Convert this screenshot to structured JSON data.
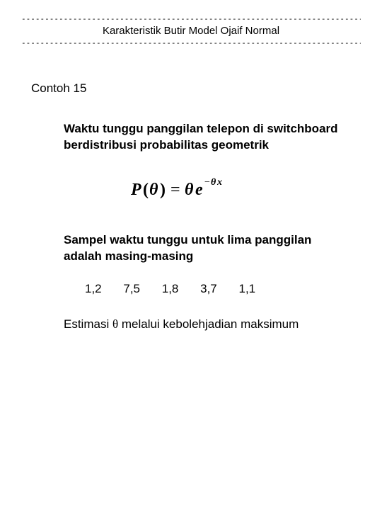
{
  "header": {
    "dash_line": "-----------------------------------------------------------------------------------",
    "title": "Karakteristik Butir Model Ojaif Normal"
  },
  "section_label": "Contoh 15",
  "intro_para": "Waktu tunggu panggilan telepon di switchboard berdistribusi probabilitas geometrik",
  "formula": {
    "text_italic_bold": true,
    "color": "#000000",
    "fontsize_pt": 20
  },
  "sample_para": "Sampel waktu tunggu untuk lima panggilan adalah masing-masing",
  "values": [
    "1,2",
    "7,5",
    "1,8",
    "3,7",
    "1,1"
  ],
  "estimate_prefix": "Estimasi ",
  "estimate_theta": "θ",
  "estimate_suffix": " melalui kebolehjadian maksimum",
  "colors": {
    "background": "#ffffff",
    "text": "#000000"
  },
  "typography": {
    "body_fontsize_pt": 17,
    "header_fontsize_pt": 15,
    "bold_paragraphs": true
  }
}
